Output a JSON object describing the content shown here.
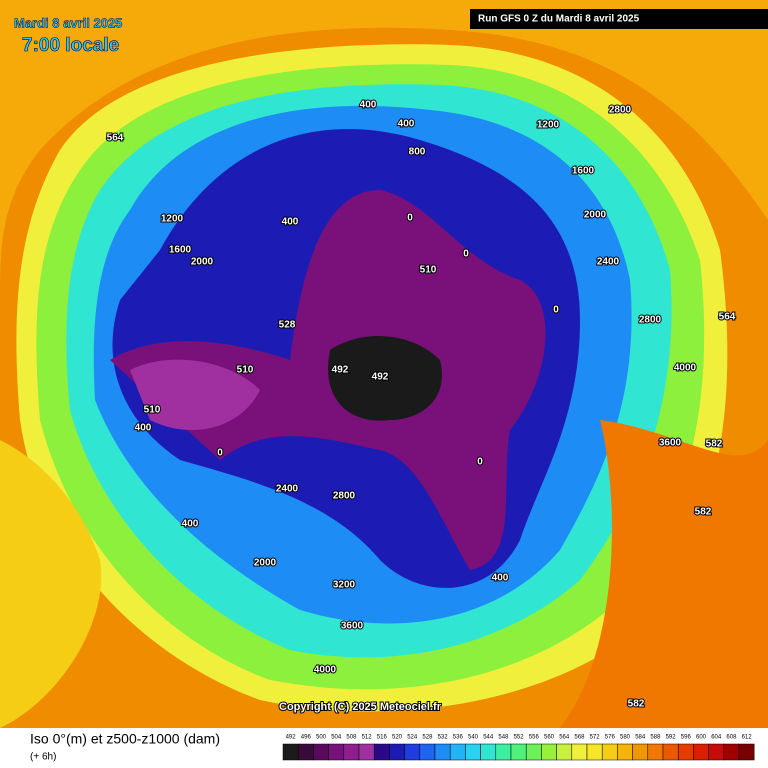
{
  "header": {
    "date": "Mardi 8 avril 2025",
    "time": "7:00 locale",
    "run": "Run GFS 0 Z du Mardi 8 avril 2025"
  },
  "footer": {
    "title": "Iso 0°(m) et z500-z1000 (dam)",
    "step": "(+ 6h)",
    "copyright": "Copyright (C) 2025 Meteociel.fr"
  },
  "legend": {
    "labels": [
      "492",
      "496",
      "500",
      "504",
      "508",
      "512",
      "516",
      "520",
      "524",
      "528",
      "532",
      "536",
      "540",
      "544",
      "548",
      "552",
      "556",
      "560",
      "564",
      "568",
      "572",
      "576",
      "580",
      "584",
      "588",
      "592",
      "596",
      "600",
      "604",
      "608",
      "612"
    ],
    "colors": [
      "#1a1a1a",
      "#3a0a3a",
      "#5a0a5a",
      "#7a107a",
      "#8e1e8e",
      "#a030a0",
      "#2a0a8a",
      "#1c1cb4",
      "#1e3ce0",
      "#1e64f0",
      "#1e8cf5",
      "#22b4f5",
      "#28d2f0",
      "#30e6d2",
      "#3cf0a0",
      "#50f07a",
      "#6ef05a",
      "#96f03c",
      "#c8f03c",
      "#f0f03c",
      "#f5e628",
      "#f5cd14",
      "#f5b40a",
      "#f09600",
      "#f07800",
      "#eb5a00",
      "#e63c00",
      "#dc1e00",
      "#c80a0a",
      "#a00000",
      "#780000"
    ]
  },
  "map_labels": [
    "492",
    "492",
    "510",
    "510",
    "510",
    "528",
    "564",
    "564",
    "582",
    "582",
    "582",
    "400",
    "400",
    "400",
    "400",
    "0",
    "0",
    "0",
    "0",
    "800",
    "1200",
    "1600",
    "2000",
    "2400",
    "2800",
    "3200",
    "3600",
    "4000",
    "2000",
    "2400",
    "2800",
    "3600",
    "4000",
    "1200",
    "1600",
    "2000",
    "400",
    "400",
    "0",
    "2800"
  ]
}
